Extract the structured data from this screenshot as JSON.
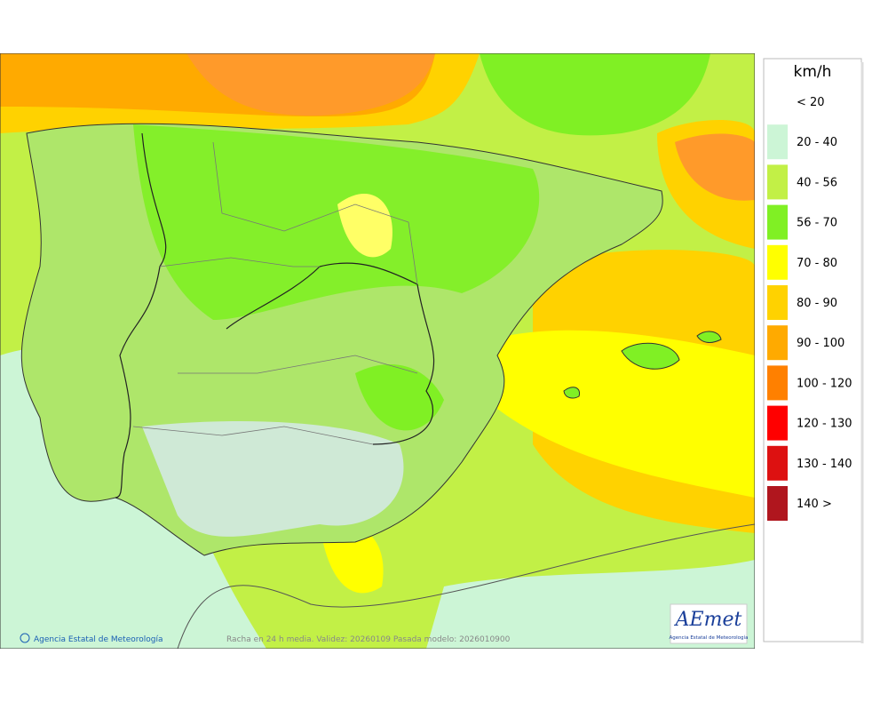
{
  "legend": {
    "title": "km/h",
    "items": [
      {
        "label": "< 20"
      },
      {
        "label": "20 - 40",
        "color": "#ccf5d6"
      },
      {
        "label": "40 - 56",
        "color": "#c2f046"
      },
      {
        "label": "56 - 70",
        "color": "#80f024"
      },
      {
        "label": "70 - 80",
        "color": "#ffff00"
      },
      {
        "label": "80 - 90",
        "color": "#ffd200"
      },
      {
        "label": "90 - 100",
        "color": "#ffaa00"
      },
      {
        "label": "100 - 120",
        "color": "#ff8000"
      },
      {
        "label": "120 - 130",
        "color": "#ff0000"
      },
      {
        "label": "130 - 140",
        "color": "#dd1111"
      },
      {
        "label": "140 >",
        "color": "#b0161e"
      }
    ]
  },
  "map": {
    "credit": "Agencia Estatal de Meteorología",
    "caption": "Racha en 24 h media. Validez: 20260109 Pasada modelo: 2026010900"
  },
  "logo": {
    "name": "AEmet",
    "subtitle": "Agencia Estatal de Meteorología"
  }
}
